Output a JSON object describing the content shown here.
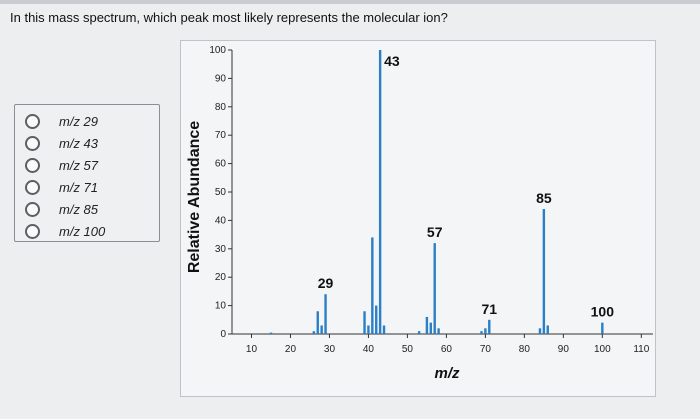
{
  "question": "In this mass spectrum, which peak most likely represents the molecular ion?",
  "options": [
    {
      "label": "m/z 29"
    },
    {
      "label": "m/z 43"
    },
    {
      "label": "m/z 57"
    },
    {
      "label": "m/z 71"
    },
    {
      "label": "m/z 85"
    },
    {
      "label": "m/z 100"
    }
  ],
  "chart_data": {
    "type": "bar",
    "xlabel": "m/z",
    "ylabel": "Relative Abundance",
    "xlim": [
      5,
      113
    ],
    "ylim": [
      0,
      100
    ],
    "xticks": [
      10,
      20,
      30,
      40,
      50,
      60,
      70,
      80,
      90,
      100,
      110
    ],
    "yticks": [
      0,
      10,
      20,
      30,
      40,
      50,
      60,
      70,
      80,
      90,
      100
    ],
    "grid": false,
    "peaks": [
      {
        "x": 15,
        "y": 0.5
      },
      {
        "x": 26,
        "y": 1
      },
      {
        "x": 27,
        "y": 8
      },
      {
        "x": 28,
        "y": 3
      },
      {
        "x": 29,
        "y": 14
      },
      {
        "x": 39,
        "y": 8
      },
      {
        "x": 40,
        "y": 3
      },
      {
        "x": 41,
        "y": 34
      },
      {
        "x": 42,
        "y": 10
      },
      {
        "x": 43,
        "y": 100
      },
      {
        "x": 44,
        "y": 3
      },
      {
        "x": 53,
        "y": 1
      },
      {
        "x": 55,
        "y": 6
      },
      {
        "x": 56,
        "y": 4
      },
      {
        "x": 57,
        "y": 32
      },
      {
        "x": 58,
        "y": 2
      },
      {
        "x": 69,
        "y": 1
      },
      {
        "x": 70,
        "y": 2
      },
      {
        "x": 71,
        "y": 5
      },
      {
        "x": 84,
        "y": 2
      },
      {
        "x": 85,
        "y": 44
      },
      {
        "x": 86,
        "y": 3
      },
      {
        "x": 100,
        "y": 4
      }
    ],
    "peak_labels": [
      {
        "x": 29,
        "y": 14,
        "text": "29"
      },
      {
        "x": 43,
        "y": 100,
        "text": "43"
      },
      {
        "x": 57,
        "y": 32,
        "text": "57"
      },
      {
        "x": 71,
        "y": 5,
        "text": "71"
      },
      {
        "x": 85,
        "y": 44,
        "text": "85"
      },
      {
        "x": 100,
        "y": 4,
        "text": "100"
      }
    ],
    "colors": {
      "bar": "#2b7fc6",
      "axis": "#333333"
    }
  }
}
